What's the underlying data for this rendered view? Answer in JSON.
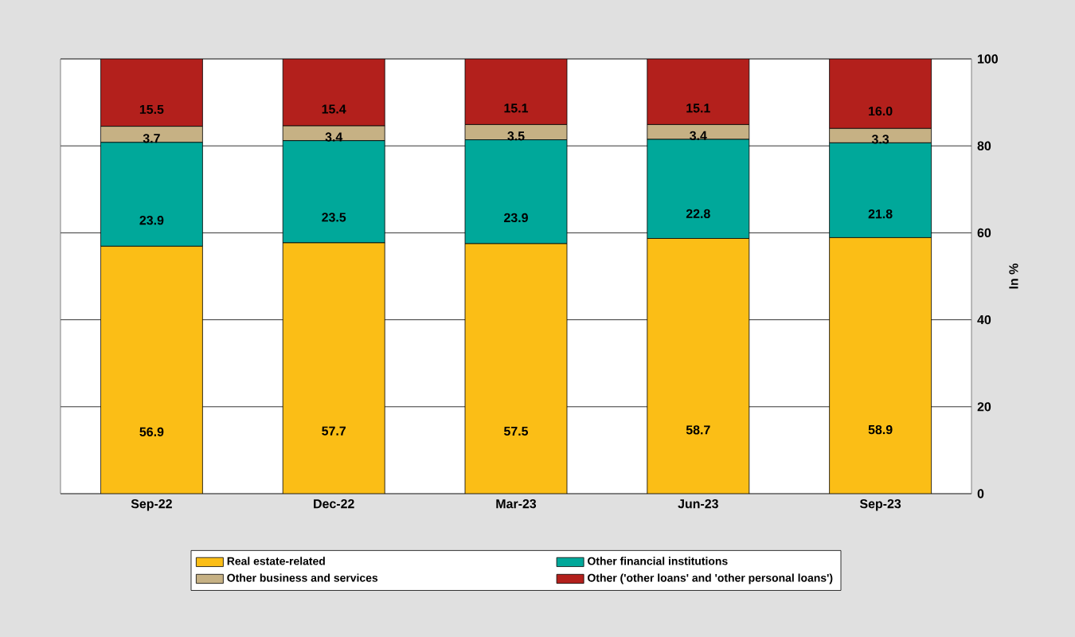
{
  "chart_data": {
    "type": "bar",
    "stacked": true,
    "ylabel": "In %",
    "categories": [
      "Sep-22",
      "Dec-22",
      "Mar-23",
      "Jun-23",
      "Sep-23"
    ],
    "series": [
      {
        "name": "Real estate-related",
        "color": "#fbbe16",
        "values": [
          56.9,
          57.7,
          57.5,
          58.7,
          58.9
        ],
        "value_labels": [
          "56.9",
          "57.7",
          "57.5",
          "58.7",
          "58.9"
        ]
      },
      {
        "name": "Other financial institutions",
        "color": "#00a89a",
        "values": [
          23.9,
          23.5,
          23.9,
          22.8,
          21.8
        ],
        "value_labels": [
          "23.9",
          "23.5",
          "23.9",
          "22.8",
          "21.8"
        ]
      },
      {
        "name": "Other business and services",
        "color": "#c6b184",
        "values": [
          3.7,
          3.4,
          3.5,
          3.4,
          3.3
        ],
        "value_labels": [
          "3.7",
          "3.4",
          "3.5",
          "3.4",
          "3.3"
        ]
      },
      {
        "name": "Other ('other loans' and 'other personal loans')",
        "color": "#b3201c",
        "values": [
          15.5,
          15.4,
          15.1,
          15.1,
          16.0
        ],
        "value_labels": [
          "15.5",
          "15.4",
          "15.1",
          "15.1",
          "16.0"
        ]
      }
    ],
    "ylim": [
      0,
      100
    ],
    "yticks": [
      0,
      20,
      40,
      60,
      80,
      100
    ],
    "grid": "y",
    "legend": "bottom"
  }
}
